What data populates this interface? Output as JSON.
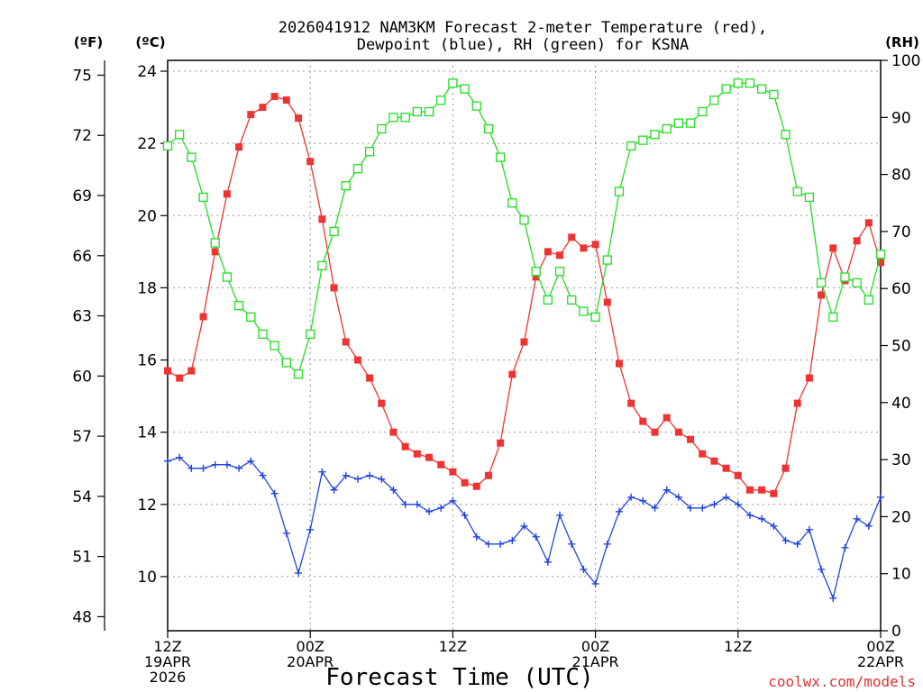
{
  "chart_data": {
    "type": "line",
    "title_line1": "2026041912 NAM3KM Forecast 2-meter Temperature (red),",
    "title_line2": "Dewpoint (blue), RH (green) for KSNA",
    "unit_f": "(ºF)",
    "unit_c": "(ºC)",
    "unit_rh": "(RH)",
    "xlabel": "Forecast Time (UTC)",
    "credit": "coolwx.com/models",
    "x_range": [
      0,
      60
    ],
    "ylim_c": [
      8.5,
      24.3
    ],
    "ylim_rh": [
      0,
      100
    ],
    "left_c_ticks": [
      "24",
      "22",
      "20",
      "18",
      "16",
      "14",
      "12",
      "10"
    ],
    "left_f_ticks": [
      "75",
      "72",
      "69",
      "66",
      "63",
      "60",
      "57",
      "54",
      "51",
      "48"
    ],
    "right_rh_ticks": [
      "100",
      "90",
      "80",
      "70",
      "60",
      "50",
      "40",
      "30",
      "20",
      "10",
      "0"
    ],
    "x_ticks": [
      {
        "hour": 0,
        "lines": [
          "12Z",
          "19APR",
          "2026"
        ]
      },
      {
        "hour": 12,
        "lines": [
          "00Z",
          "20APR"
        ]
      },
      {
        "hour": 24,
        "lines": [
          "12Z"
        ]
      },
      {
        "hour": 36,
        "lines": [
          "00Z",
          "21APR"
        ]
      },
      {
        "hour": 48,
        "lines": [
          "12Z"
        ]
      },
      {
        "hour": 60,
        "lines": [
          "00Z",
          "22APR"
        ]
      }
    ],
    "series": [
      {
        "name": "2-meter Temperature (°C)",
        "color": "#ee3333",
        "axis": "c",
        "marker": "filled-square",
        "values": [
          15.7,
          15.5,
          15.7,
          17.2,
          19.0,
          20.6,
          21.9,
          22.8,
          23.0,
          23.3,
          23.2,
          22.7,
          21.5,
          19.9,
          18.0,
          16.5,
          16.0,
          15.5,
          14.8,
          14.0,
          13.6,
          13.4,
          13.3,
          13.1,
          12.9,
          12.6,
          12.5,
          12.8,
          13.7,
          15.6,
          16.5,
          18.3,
          19.0,
          18.9,
          19.4,
          19.1,
          19.2,
          17.6,
          15.9,
          14.8,
          14.3,
          14.0,
          14.4,
          14.0,
          13.8,
          13.4,
          13.2,
          13.0,
          12.8,
          12.4,
          12.4,
          12.3,
          13.0,
          14.8,
          15.5,
          17.8,
          19.1,
          18.2,
          19.3,
          19.8,
          18.7
        ]
      },
      {
        "name": "Dewpoint (°C)",
        "color": "#2244dd",
        "axis": "c",
        "marker": "plus",
        "values": [
          13.2,
          13.3,
          13.0,
          13.0,
          13.1,
          13.1,
          13.0,
          13.2,
          12.8,
          12.3,
          11.2,
          10.1,
          11.3,
          12.9,
          12.4,
          12.8,
          12.7,
          12.8,
          12.7,
          12.4,
          12.0,
          12.0,
          11.8,
          11.9,
          12.1,
          11.7,
          11.1,
          10.9,
          10.9,
          11.0,
          11.4,
          11.1,
          10.4,
          11.7,
          10.9,
          10.2,
          9.8,
          10.9,
          11.8,
          12.2,
          12.1,
          11.9,
          12.4,
          12.2,
          11.9,
          11.9,
          12.0,
          12.2,
          12.0,
          11.7,
          11.6,
          11.4,
          11.0,
          10.9,
          11.3,
          10.2,
          9.4,
          10.8,
          11.6,
          11.4,
          12.2
        ]
      },
      {
        "name": "RH (%)",
        "color": "#22dd22",
        "axis": "rh",
        "marker": "open-square",
        "values": [
          85,
          87,
          83,
          76,
          68,
          62,
          57,
          55,
          52,
          50,
          47,
          45,
          52,
          64,
          70,
          78,
          81,
          84,
          88,
          90,
          90,
          91,
          91,
          93,
          96,
          95,
          92,
          88,
          83,
          75,
          72,
          63,
          58,
          63,
          58,
          56,
          55,
          65,
          77,
          85,
          86,
          87,
          88,
          89,
          89,
          91,
          93,
          95,
          96,
          96,
          95,
          94,
          87,
          77,
          76,
          61,
          55,
          62,
          61,
          58,
          66
        ]
      }
    ]
  }
}
